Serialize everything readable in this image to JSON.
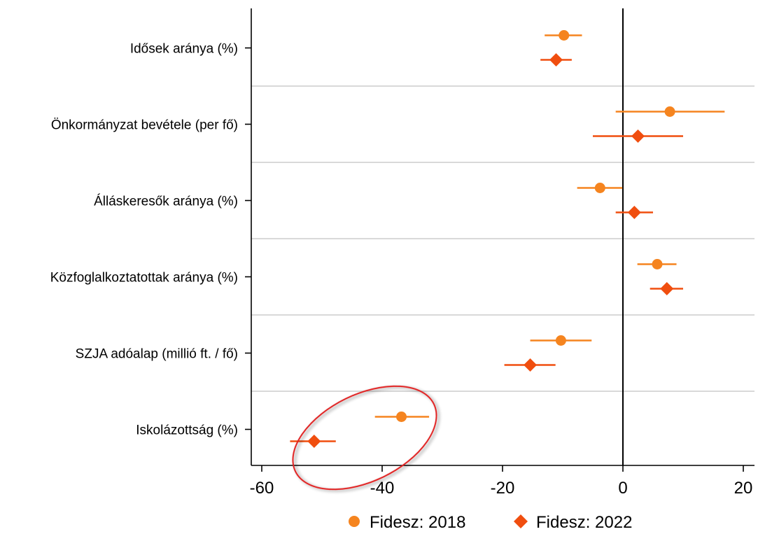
{
  "chart_data": {
    "type": "scatter",
    "subtype": "coefficient-plot-with-error-bars",
    "title": "",
    "xlabel": "",
    "ylabel": "",
    "xlim": [
      -62,
      22
    ],
    "xticks": [
      -60,
      -40,
      -20,
      0,
      20
    ],
    "xtick_labels": [
      "-60",
      "-40",
      "-20",
      "0",
      "20"
    ],
    "reference_line_x": 0,
    "grid": "horizontal separators between categories",
    "categories": [
      "Idősek aránya (%)",
      "Önkormányzat bevétele (per fő)",
      "Álláskeresők aránya (%)",
      "Közfoglalkoztatottak aránya (%)",
      "SZJA adóalap (millió ft. / fő)",
      "Iskolázottság (%)"
    ],
    "series": [
      {
        "name": "Fidesz: 2018",
        "marker": "circle",
        "color": "#F5841F",
        "values": [
          -9.8,
          7.8,
          -3.8,
          5.7,
          -10.3,
          -36.8
        ],
        "ci_low": [
          -13.0,
          -1.2,
          -7.6,
          2.4,
          -15.4,
          -41.2
        ],
        "ci_high": [
          -6.8,
          16.9,
          -0.1,
          8.9,
          -5.2,
          -32.2
        ]
      },
      {
        "name": "Fidesz: 2022",
        "marker": "diamond",
        "color": "#F04E0F",
        "values": [
          -11.1,
          2.5,
          1.9,
          7.3,
          -15.4,
          -51.3
        ],
        "ci_low": [
          -13.7,
          -5.0,
          -1.2,
          4.5,
          -19.7,
          -55.3
        ],
        "ci_high": [
          -8.5,
          10.0,
          5.0,
          10.0,
          -11.2,
          -47.7
        ]
      }
    ],
    "legend": {
      "position": "bottom-center"
    },
    "annotation": {
      "type": "ellipse",
      "color": "#E02020",
      "highlights": "Iskolázottság (%)"
    }
  }
}
